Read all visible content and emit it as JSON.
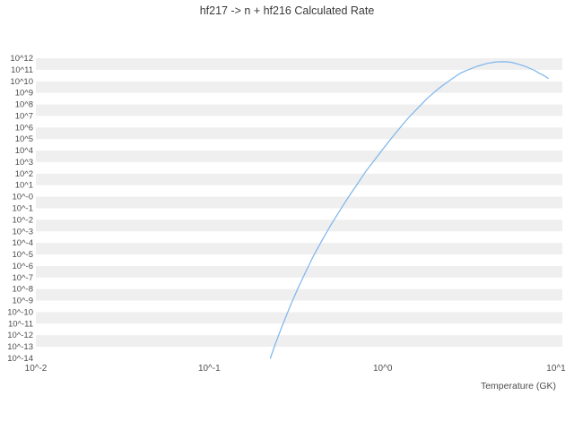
{
  "colors": {
    "background": "#ffffff",
    "band": "#efefef",
    "line": "#7cb5ec",
    "title_text": "#3a3a3a",
    "tick_text": "#4d4d4d"
  },
  "chart_data": {
    "type": "line",
    "title": "hf217 -> n + hf216 Calculated Rate",
    "xlabel": "Temperature (GK)",
    "ylabel": "",
    "x_scale": "log",
    "y_scale": "log",
    "xlim_log10": [
      -2,
      1
    ],
    "ylim_log10": [
      -14,
      12
    ],
    "grid": "alternating-horizontal-bands",
    "legend": "none",
    "x_tick_labels": [
      "10^-2",
      "10^-1",
      "10^0",
      "10^1"
    ],
    "x_tick_log10": [
      -2,
      -1,
      0,
      1
    ],
    "y_tick_labels": [
      "10^12",
      "10^11",
      "10^10",
      "10^9",
      "10^8",
      "10^7",
      "10^6",
      "10^5",
      "10^4",
      "10^3",
      "10^2",
      "10^1",
      "10^-0",
      "10^-1",
      "10^-2",
      "10^-3",
      "10^-4",
      "10^-5",
      "10^-6",
      "10^-7",
      "10^-8",
      "10^-9",
      "10^-10",
      "10^-11",
      "10^-12",
      "10^-13",
      "10^-14"
    ],
    "y_tick_log10": [
      12,
      11,
      10,
      9,
      8,
      7,
      6,
      5,
      4,
      3,
      2,
      1,
      0,
      -1,
      -2,
      -3,
      -4,
      -5,
      -6,
      -7,
      -8,
      -9,
      -10,
      -11,
      -12,
      -13,
      -14
    ],
    "series": [
      {
        "name": "Calculated Rate",
        "color": "#7cb5ec",
        "temperature_GK": [
          0.225,
          0.24,
          0.26,
          0.28,
          0.3,
          0.33,
          0.36,
          0.4,
          0.45,
          0.5,
          0.55,
          0.6,
          0.65,
          0.7,
          0.8,
          0.9,
          1.0,
          1.1,
          1.2,
          1.4,
          1.6,
          1.8,
          2.0,
          2.2,
          2.5,
          2.8,
          3.0,
          3.5,
          4.0,
          4.5,
          5.0,
          5.5,
          6.0,
          6.5,
          7.0,
          7.5,
          8.0,
          8.5,
          9.0
        ],
        "log10_rate": [
          -14,
          -12.8,
          -11.4,
          -10.2,
          -9.1,
          -7.7,
          -6.5,
          -5.1,
          -3.7,
          -2.5,
          -1.5,
          -0.6,
          0.2,
          0.9,
          2.2,
          3.2,
          4.1,
          4.9,
          5.6,
          6.8,
          7.7,
          8.5,
          9.1,
          9.6,
          10.2,
          10.7,
          10.9,
          11.3,
          11.55,
          11.68,
          11.7,
          11.65,
          11.5,
          11.35,
          11.15,
          10.95,
          10.7,
          10.5,
          10.25
        ]
      }
    ]
  }
}
